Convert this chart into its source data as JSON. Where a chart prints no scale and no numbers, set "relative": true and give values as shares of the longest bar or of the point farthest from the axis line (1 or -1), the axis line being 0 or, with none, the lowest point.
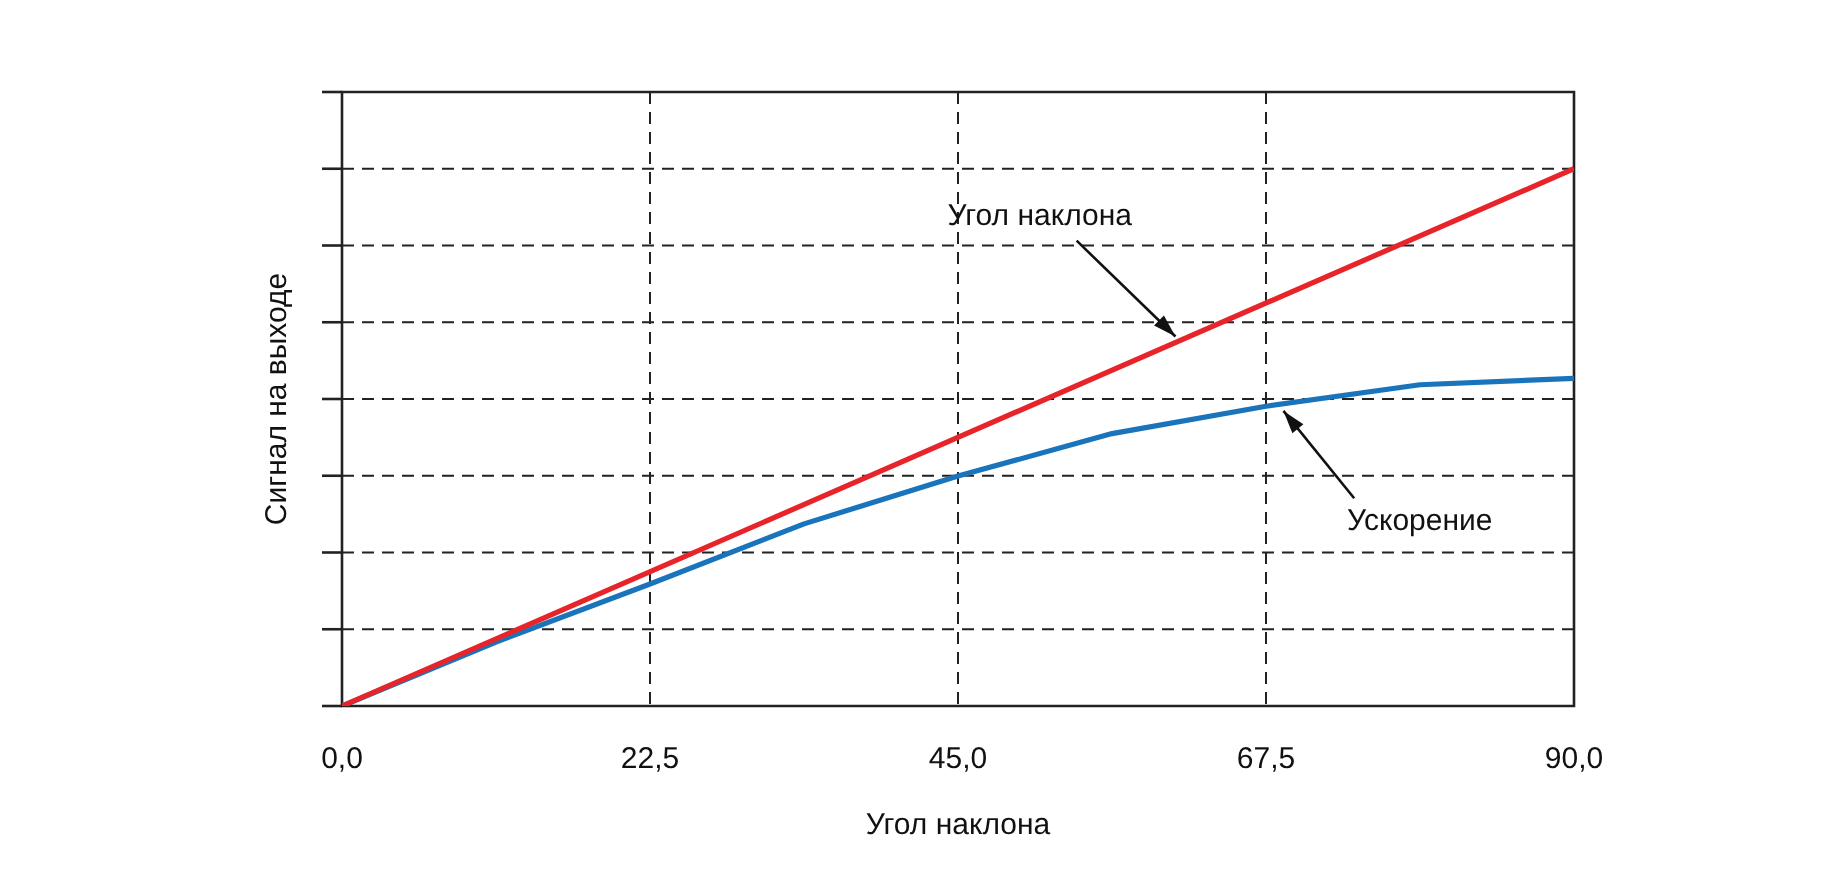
{
  "chart_data": {
    "type": "line",
    "xlabel": "Угол наклона",
    "ylabel": "Сигнал на выходе",
    "relative": true,
    "xlim": [
      0,
      90
    ],
    "xticks": [
      {
        "value": 0,
        "label": "0,0"
      },
      {
        "value": 22.5,
        "label": "22,5"
      },
      {
        "value": 45,
        "label": "45,0"
      },
      {
        "value": 67.5,
        "label": "67,5"
      },
      {
        "value": 90,
        "label": "90,0"
      }
    ],
    "series": [
      {
        "color": "#e8242b",
        "x": [
          0,
          90
        ],
        "values": [
          0,
          1
        ]
      },
      {
        "color": "#1a74bb",
        "x": [
          0,
          11.25,
          22.5,
          33.75,
          45,
          56.25,
          67.5,
          78.75,
          90
        ],
        "values": [
          0,
          0.119,
          0.227,
          0.339,
          0.428,
          0.507,
          0.558,
          0.598,
          0.61
        ]
      }
    ],
    "annotations": [
      {
        "text": "Угол наклона",
        "x": 61.2,
        "y": 0.68
      },
      {
        "text": "Ускорение",
        "x": 68.5,
        "y": 0.558
      }
    ],
    "grid": true,
    "legend": false,
    "marker": "none",
    "line_style": "solid",
    "tick_labels": "x"
  }
}
